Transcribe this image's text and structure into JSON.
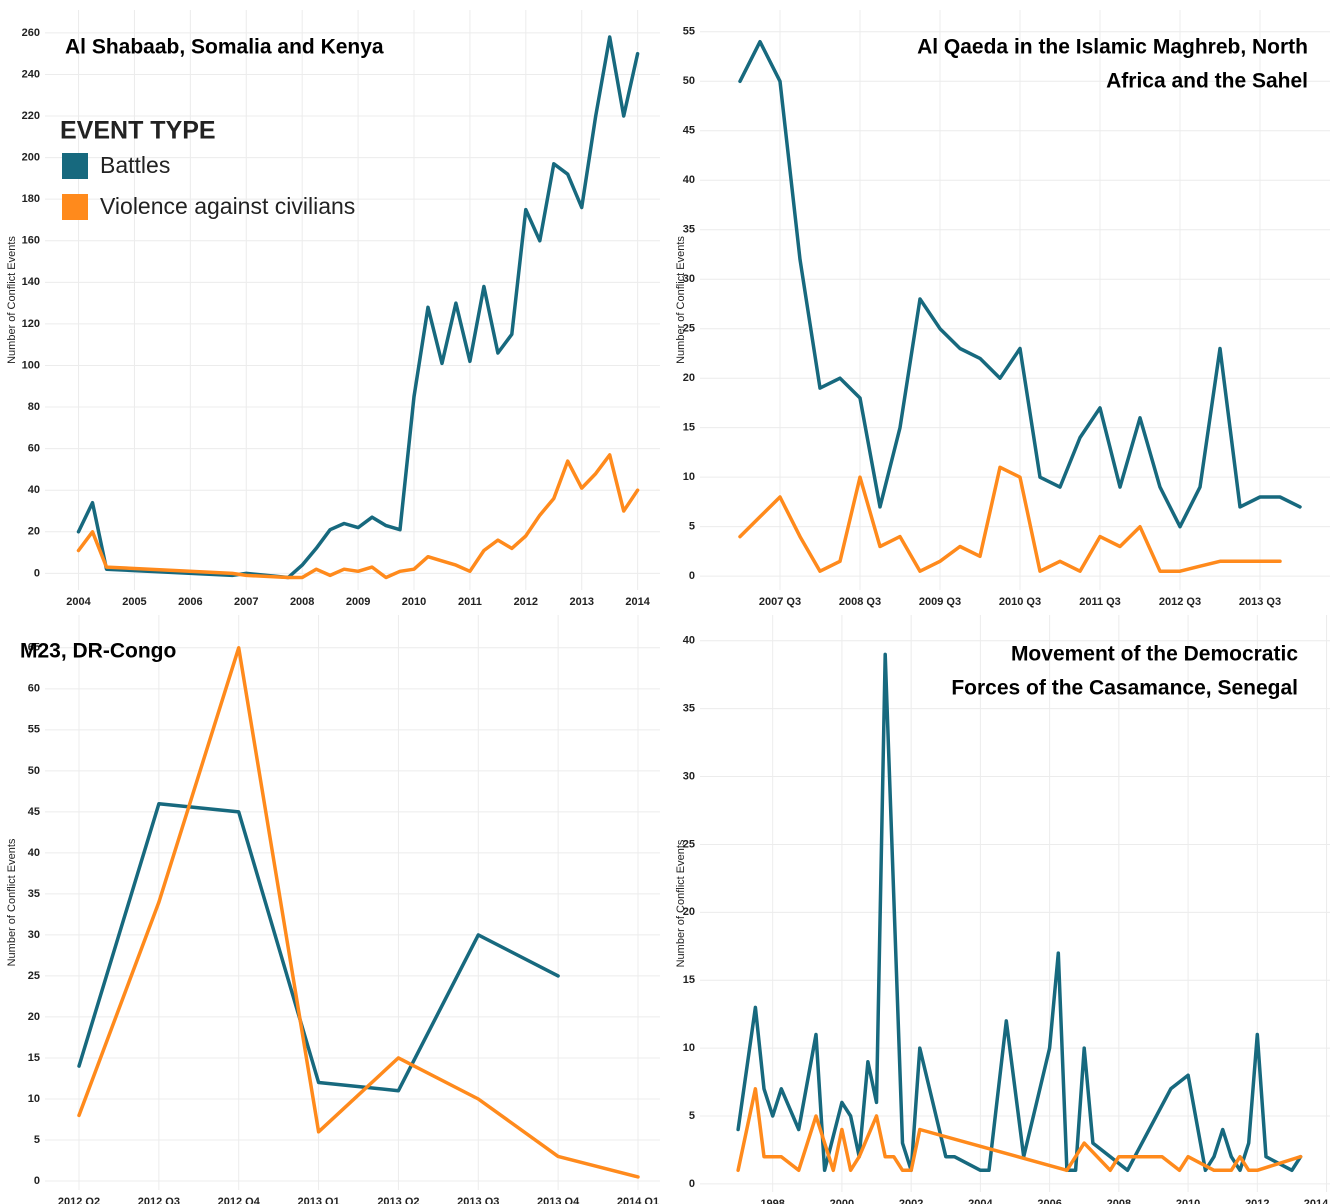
{
  "chart_data": [
    {
      "type": "line",
      "title": "Al Shabaab, Somalia and Kenya",
      "y_label": "Number of Conflict Events",
      "legend_title": "EVENT TYPE",
      "legend": "top-left",
      "grid": true,
      "xlim": [
        2003.4,
        2014.4
      ],
      "xticks": [
        2004,
        2005,
        2006,
        2007,
        2008,
        2009,
        2010,
        2011,
        2012,
        2013,
        2014
      ],
      "ylim": [
        -8,
        271
      ],
      "yticks": [
        0,
        20,
        40,
        60,
        80,
        100,
        120,
        140,
        160,
        180,
        200,
        220,
        240,
        260
      ],
      "x": [
        2004,
        2004.25,
        2004.5,
        2006.75,
        2007,
        2007.75,
        2008,
        2008.25,
        2008.5,
        2008.75,
        2009,
        2009.25,
        2009.5,
        2009.75,
        2010,
        2010.25,
        2010.5,
        2010.75,
        2011,
        2011.25,
        2011.5,
        2011.75,
        2012,
        2012.25,
        2012.5,
        2012.75,
        2013,
        2013.25,
        2013.5,
        2013.75,
        2014
      ],
      "series": [
        {
          "name": "Battles",
          "color": "#17697e",
          "values": [
            20,
            34,
            2,
            -1,
            0,
            -2,
            4,
            12,
            21,
            24,
            22,
            27,
            23,
            21,
            85,
            128,
            101,
            130,
            102,
            138,
            106,
            115,
            175,
            160,
            197,
            192,
            176,
            220,
            258,
            220,
            250
          ]
        },
        {
          "name": "Violence against civilians",
          "color": "#ff8a1c",
          "values": [
            11,
            20,
            3,
            0,
            -1,
            -2,
            -2,
            2,
            -1,
            2,
            1,
            3,
            -2,
            1,
            2,
            8,
            6,
            4,
            1,
            11,
            16,
            12,
            18,
            28,
            36,
            54,
            41,
            48,
            57,
            30,
            40
          ]
        }
      ]
    },
    {
      "type": "line",
      "title": [
        "Al Qaeda in the Islamic Maghreb, North",
        "Africa and the Sahel"
      ],
      "y_label": "Number of Conflict Events",
      "grid": true,
      "categories": [
        null,
        null,
        "2007 Q3",
        null,
        null,
        null,
        "2008 Q3",
        null,
        null,
        null,
        "2009 Q3",
        null,
        null,
        null,
        "2010 Q3",
        null,
        null,
        null,
        "2011 Q3",
        null,
        null,
        null,
        "2012 Q3",
        null,
        null,
        null,
        "2013 Q3",
        null,
        null
      ],
      "ylim": [
        -1.4,
        57.2
      ],
      "yticks": [
        0,
        5,
        10,
        15,
        20,
        25,
        30,
        35,
        40,
        45,
        50,
        55
      ],
      "series": [
        {
          "color": "#17697e",
          "values": [
            50,
            54,
            50,
            32,
            19,
            20,
            18,
            7,
            15,
            28,
            25,
            23,
            22,
            20,
            23,
            10,
            9,
            14,
            17,
            9,
            16,
            9,
            5,
            9,
            23,
            7,
            8,
            8,
            7
          ]
        },
        {
          "color": "#ff8a1c",
          "values": [
            4,
            6,
            8,
            4,
            0.5,
            1.5,
            10,
            3,
            4,
            0.5,
            1.5,
            3,
            2,
            11,
            10,
            0.5,
            1.5,
            0.5,
            4,
            3,
            5,
            0.5,
            0.5,
            1,
            1.5,
            1.5,
            1.5,
            1.5,
            null
          ]
        }
      ]
    },
    {
      "type": "line",
      "title": "M23, DR-Congo",
      "y_label": "Number of Conflict Events",
      "grid": true,
      "categories": [
        "2012 Q2",
        "2012 Q3",
        "2012 Q4",
        "2013 Q1",
        "2013 Q2",
        "2013 Q3",
        "2013 Q4",
        "2014 Q1"
      ],
      "ylim": [
        -1.1,
        69
      ],
      "yticks": [
        0,
        5,
        10,
        15,
        20,
        25,
        30,
        35,
        40,
        45,
        50,
        55,
        60,
        65
      ],
      "series": [
        {
          "color": "#17697e",
          "values": [
            14,
            46,
            45,
            12,
            11,
            30,
            25,
            null
          ]
        },
        {
          "color": "#ff8a1c",
          "values": [
            8,
            34,
            65,
            6,
            15,
            10,
            3,
            0.5
          ]
        }
      ]
    },
    {
      "type": "line",
      "title": [
        "Movement of the Democratic",
        "Forces of the Casamance, Senegal"
      ],
      "y_label": "Number of Conflict Events",
      "grid": true,
      "xlim": [
        1995.9,
        2014.1
      ],
      "xticks": [
        1998,
        2000,
        2002,
        2004,
        2006,
        2008,
        2010,
        2012,
        2014
      ],
      "ylim": [
        -0.6,
        41.9
      ],
      "yticks": [
        0,
        5,
        10,
        15,
        20,
        25,
        30,
        35,
        40
      ],
      "series": [
        {
          "color": "#17697e",
          "x": [
            1997,
            1997.5,
            1997.75,
            1998,
            1998.25,
            1998.75,
            1999.25,
            1999.5,
            2000,
            2000.25,
            2000.5,
            2000.75,
            2001,
            2001.25,
            2001.75,
            2002,
            2002.25,
            2003,
            2003.25,
            2004,
            2004.25,
            2004.75,
            2005.25,
            2006,
            2006.25,
            2006.5,
            2006.75,
            2007,
            2007.25,
            2008.25,
            2009.5,
            2010,
            2010.5,
            2010.75,
            2011,
            2011.25,
            2011.5,
            2011.75,
            2012,
            2012.25,
            2013,
            2013.25
          ],
          "values": [
            4,
            13,
            7,
            5,
            7,
            4,
            11,
            1,
            6,
            5,
            2,
            9,
            6,
            39,
            3,
            1,
            10,
            2,
            2,
            1,
            1,
            12,
            2,
            10,
            17,
            1,
            1,
            10,
            3,
            1,
            7,
            8,
            1,
            2,
            4,
            2,
            1,
            3,
            11,
            2,
            1,
            2
          ]
        },
        {
          "color": "#ff8a1c",
          "x": [
            1997,
            1997.5,
            1997.75,
            1998.25,
            1998.75,
            1999.25,
            1999.75,
            2000,
            2000.25,
            2000.5,
            2001,
            2001.25,
            2001.5,
            2001.75,
            2002,
            2002.25,
            2006.5,
            2007,
            2007.75,
            2008,
            2009.25,
            2009.75,
            2010,
            2010.75,
            2011.25,
            2011.5,
            2011.75,
            2012,
            2013.25
          ],
          "values": [
            1,
            7,
            2,
            2,
            1,
            5,
            1,
            4,
            1,
            2,
            5,
            2,
            2,
            1,
            1,
            4,
            1,
            3,
            1,
            2,
            2,
            1,
            2,
            1,
            1,
            2,
            1,
            1,
            2
          ]
        }
      ]
    }
  ]
}
